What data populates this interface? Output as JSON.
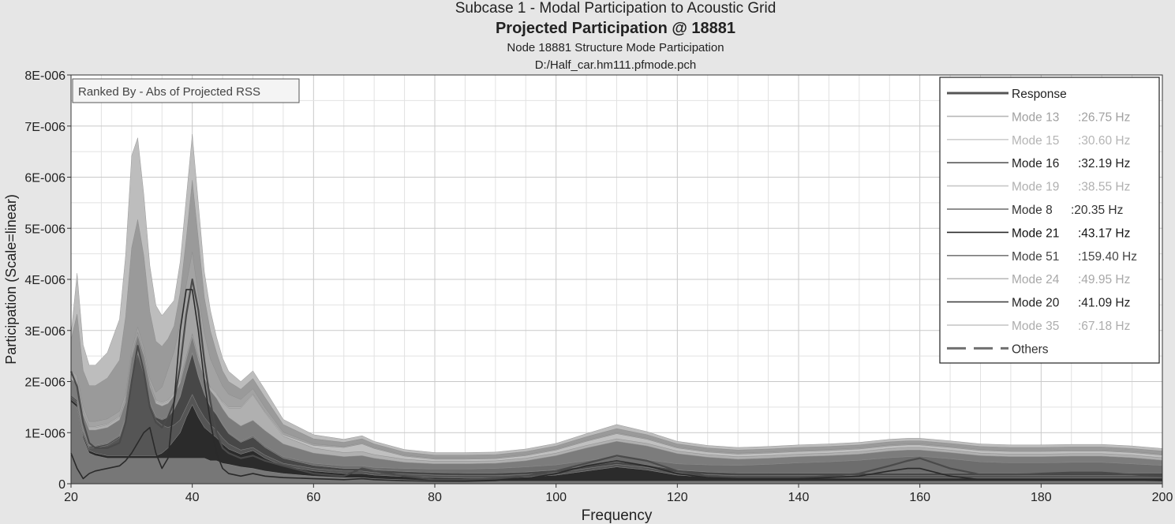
{
  "chart_data": {
    "type": "area",
    "title": "Subcase 1 - Modal Participation to Acoustic Grid",
    "subtitle": "Projected Participation @ 18881",
    "subtitle2": "Node 18881 Structure Mode Participation",
    "source": "D:/Half_car.hm111.pfmode.pch",
    "xlabel": "Frequency",
    "ylabel": "Participation (Scale=linear)",
    "ranked_by": "Ranked By - Abs of Projected RSS",
    "xlim": [
      20,
      200
    ],
    "ylim": [
      0,
      8e-06
    ],
    "x_ticks": [
      "20",
      "40",
      "60",
      "80",
      "100",
      "120",
      "140",
      "160",
      "180",
      "200"
    ],
    "x_tick_values": [
      20,
      40,
      60,
      80,
      100,
      120,
      140,
      160,
      180,
      200
    ],
    "y_ticks": [
      "0",
      "1E-006",
      "2E-006",
      "3E-006",
      "4E-006",
      "5E-006",
      "6E-006",
      "7E-006",
      "8E-006"
    ],
    "y_tick_values": [
      0,
      1e-06,
      2e-06,
      3e-06,
      4e-06,
      5e-06,
      6e-06,
      7e-06,
      8e-06
    ],
    "grid": true,
    "legend_position": "top-right",
    "legend": [
      {
        "name": "Response",
        "freq": "",
        "color": "#555555",
        "text_color": "#222222",
        "dash": false
      },
      {
        "name": "Mode 13",
        "freq": ":26.75 Hz",
        "color": "#b8b8b8",
        "text_color": "#a0a0a0",
        "dash": false
      },
      {
        "name": "Mode 15",
        "freq": ":30.60 Hz",
        "color": "#cfcfcf",
        "text_color": "#b5b5b5",
        "dash": false
      },
      {
        "name": "Mode 16",
        "freq": ":32.19 Hz",
        "color": "#5a5a5a",
        "text_color": "#222222",
        "dash": false
      },
      {
        "name": "Mode 19",
        "freq": ":38.55 Hz",
        "color": "#c8c8c8",
        "text_color": "#b0b0b0",
        "dash": false
      },
      {
        "name": "Mode 8",
        "freq": ":20.35 Hz",
        "color": "#6a6a6a",
        "text_color": "#333333",
        "dash": false
      },
      {
        "name": "Mode 21",
        "freq": ":43.17 Hz",
        "color": "#2a2a2a",
        "text_color": "#111111",
        "dash": false
      },
      {
        "name": "Mode 51",
        "freq": ":159.40 Hz",
        "color": "#7a7a7a",
        "text_color": "#444444",
        "dash": false
      },
      {
        "name": "Mode 24",
        "freq": ":49.95 Hz",
        "color": "#bcbcbc",
        "text_color": "#a8a8a8",
        "dash": false
      },
      {
        "name": "Mode 20",
        "freq": ":41.09 Hz",
        "color": "#444444",
        "text_color": "#222222",
        "dash": false
      },
      {
        "name": "Mode 35",
        "freq": ":67.18 Hz",
        "color": "#c4c4c4",
        "text_color": "#adadad",
        "dash": false
      },
      {
        "name": "Others",
        "freq": "",
        "color": "#707070",
        "text_color": "#333333",
        "dash": true
      }
    ],
    "x": [
      20,
      21,
      22,
      23,
      24,
      26,
      28,
      29,
      30,
      31,
      32,
      33,
      34,
      35,
      36,
      37,
      38,
      39,
      40,
      41,
      42,
      43,
      44,
      45,
      46,
      48,
      50,
      52,
      55,
      60,
      65,
      68,
      70,
      75,
      80,
      85,
      90,
      95,
      100,
      105,
      110,
      115,
      120,
      125,
      130,
      135,
      140,
      145,
      150,
      155,
      158,
      160,
      165,
      170,
      175,
      180,
      185,
      190,
      195,
      200
    ],
    "series": [
      {
        "name": "Mode 8",
        "color": "#777777",
        "values": [
          1.6,
          1.5,
          0.9,
          0.6,
          0.55,
          0.5,
          0.5,
          0.5,
          0.5,
          0.5,
          0.5,
          0.5,
          0.5,
          0.5,
          0.5,
          0.5,
          0.5,
          0.5,
          0.5,
          0.5,
          0.5,
          0.45,
          0.45,
          0.4,
          0.38,
          0.33,
          0.3,
          0.25,
          0.2,
          0.15,
          0.12,
          0.12,
          0.1,
          0.08,
          0.06,
          0.05,
          0.05,
          0.05,
          0.05,
          0.05,
          0.05,
          0.05,
          0.05,
          0.05,
          0.05,
          0.05,
          0.05,
          0.05,
          0.05,
          0.05,
          0.05,
          0.05,
          0.05,
          0.05,
          0.05,
          0.05,
          0.05,
          0.05,
          0.05,
          0.05
        ]
      },
      {
        "name": "Mode 21",
        "color": "#2b2b2b",
        "values": [
          0.05,
          0.05,
          0.05,
          0.05,
          0.05,
          0.05,
          0.05,
          0.05,
          0.05,
          0.05,
          0.05,
          0.05,
          0.05,
          0.1,
          0.2,
          0.35,
          0.5,
          0.8,
          1.05,
          0.8,
          0.6,
          0.55,
          0.45,
          0.38,
          0.3,
          0.25,
          0.35,
          0.25,
          0.15,
          0.1,
          0.08,
          0.08,
          0.07,
          0.06,
          0.06,
          0.06,
          0.06,
          0.08,
          0.12,
          0.2,
          0.28,
          0.22,
          0.12,
          0.08,
          0.06,
          0.06,
          0.06,
          0.06,
          0.06,
          0.06,
          0.06,
          0.06,
          0.06,
          0.06,
          0.06,
          0.06,
          0.06,
          0.06,
          0.06,
          0.06
        ]
      },
      {
        "name": "Mode 16",
        "color": "#555555",
        "values": [
          0.05,
          0.05,
          0.05,
          0.05,
          0.1,
          0.2,
          0.35,
          0.7,
          1.55,
          2.0,
          1.6,
          1.0,
          0.7,
          0.55,
          0.4,
          0.3,
          0.25,
          0.2,
          0.2,
          0.2,
          0.2,
          0.15,
          0.15,
          0.12,
          0.1,
          0.08,
          0.06,
          0.06,
          0.05,
          0.05,
          0.05,
          0.05,
          0.05,
          0.05,
          0.05,
          0.05,
          0.05,
          0.05,
          0.05,
          0.05,
          0.05,
          0.05,
          0.05,
          0.05,
          0.05,
          0.05,
          0.05,
          0.05,
          0.05,
          0.05,
          0.05,
          0.05,
          0.05,
          0.05,
          0.05,
          0.05,
          0.05,
          0.05,
          0.05,
          0.05
        ]
      },
      {
        "name": "Mode 20",
        "color": "#474747",
        "values": [
          0.03,
          0.03,
          0.03,
          0.03,
          0.03,
          0.03,
          0.03,
          0.03,
          0.03,
          0.03,
          0.03,
          0.03,
          0.05,
          0.1,
          0.2,
          0.3,
          0.45,
          0.65,
          0.8,
          0.6,
          0.45,
          0.35,
          0.3,
          0.25,
          0.2,
          0.15,
          0.2,
          0.15,
          0.1,
          0.06,
          0.05,
          0.05,
          0.05,
          0.05,
          0.05,
          0.05,
          0.05,
          0.05,
          0.05,
          0.05,
          0.05,
          0.05,
          0.05,
          0.05,
          0.05,
          0.05,
          0.05,
          0.05,
          0.05,
          0.05,
          0.05,
          0.05,
          0.05,
          0.05,
          0.05,
          0.05,
          0.05,
          0.05,
          0.05,
          0.05
        ]
      },
      {
        "name": "Mode 51",
        "color": "#6d6d6d",
        "values": [
          0.02,
          0.02,
          0.02,
          0.02,
          0.02,
          0.02,
          0.02,
          0.02,
          0.02,
          0.02,
          0.02,
          0.02,
          0.02,
          0.02,
          0.02,
          0.02,
          0.02,
          0.02,
          0.02,
          0.02,
          0.02,
          0.02,
          0.02,
          0.02,
          0.02,
          0.02,
          0.03,
          0.03,
          0.03,
          0.04,
          0.05,
          0.05,
          0.05,
          0.06,
          0.07,
          0.08,
          0.09,
          0.1,
          0.1,
          0.1,
          0.1,
          0.1,
          0.12,
          0.14,
          0.15,
          0.17,
          0.2,
          0.22,
          0.25,
          0.3,
          0.32,
          0.33,
          0.28,
          0.22,
          0.2,
          0.2,
          0.21,
          0.21,
          0.18,
          0.15
        ]
      },
      {
        "name": "Others",
        "color": "#7c7c7c",
        "values": [
          0.3,
          0.3,
          0.3,
          0.3,
          0.3,
          0.3,
          0.3,
          0.3,
          0.3,
          0.3,
          0.3,
          0.3,
          0.25,
          0.25,
          0.25,
          0.25,
          0.25,
          0.25,
          0.3,
          0.3,
          0.3,
          0.3,
          0.3,
          0.3,
          0.3,
          0.3,
          0.3,
          0.3,
          0.25,
          0.2,
          0.18,
          0.2,
          0.18,
          0.12,
          0.1,
          0.1,
          0.1,
          0.12,
          0.18,
          0.25,
          0.3,
          0.27,
          0.2,
          0.15,
          0.12,
          0.12,
          0.12,
          0.12,
          0.12,
          0.13,
          0.13,
          0.12,
          0.12,
          0.12,
          0.12,
          0.12,
          0.12,
          0.12,
          0.12,
          0.1
        ]
      },
      {
        "name": "Mode 24",
        "color": "#b0b0b0",
        "values": [
          0.05,
          0.05,
          0.05,
          0.05,
          0.05,
          0.05,
          0.05,
          0.05,
          0.05,
          0.05,
          0.05,
          0.05,
          0.05,
          0.05,
          0.05,
          0.05,
          0.05,
          0.05,
          0.05,
          0.05,
          0.05,
          0.05,
          0.08,
          0.12,
          0.18,
          0.35,
          0.5,
          0.35,
          0.15,
          0.1,
          0.08,
          0.08,
          0.07,
          0.06,
          0.05,
          0.05,
          0.05,
          0.05,
          0.05,
          0.05,
          0.05,
          0.05,
          0.05,
          0.05,
          0.05,
          0.05,
          0.05,
          0.05,
          0.05,
          0.05,
          0.05,
          0.05,
          0.05,
          0.05,
          0.05,
          0.05,
          0.05,
          0.05,
          0.05,
          0.05
        ]
      },
      {
        "name": "Mode 35",
        "color": "#c0c0c0",
        "values": [
          0.02,
          0.02,
          0.02,
          0.02,
          0.02,
          0.02,
          0.02,
          0.02,
          0.02,
          0.02,
          0.02,
          0.02,
          0.02,
          0.02,
          0.02,
          0.02,
          0.02,
          0.02,
          0.02,
          0.02,
          0.02,
          0.02,
          0.02,
          0.02,
          0.02,
          0.02,
          0.02,
          0.02,
          0.03,
          0.05,
          0.1,
          0.15,
          0.12,
          0.06,
          0.04,
          0.04,
          0.04,
          0.05,
          0.06,
          0.08,
          0.1,
          0.08,
          0.06,
          0.05,
          0.05,
          0.05,
          0.05,
          0.05,
          0.05,
          0.05,
          0.05,
          0.05,
          0.05,
          0.05,
          0.05,
          0.05,
          0.05,
          0.05,
          0.05,
          0.05
        ]
      },
      {
        "name": "Mode 19",
        "color": "#a3a3a3",
        "values": [
          0.1,
          0.1,
          0.1,
          0.1,
          0.1,
          0.1,
          0.1,
          0.1,
          0.1,
          0.1,
          0.1,
          0.1,
          0.15,
          0.3,
          0.6,
          0.8,
          1.1,
          1.4,
          1.6,
          1.2,
          0.8,
          0.55,
          0.4,
          0.3,
          0.25,
          0.15,
          0.1,
          0.08,
          0.05,
          0.03,
          0.02,
          0.02,
          0.02,
          0.02,
          0.02,
          0.02,
          0.02,
          0.02,
          0.02,
          0.02,
          0.02,
          0.02,
          0.02,
          0.02,
          0.02,
          0.02,
          0.02,
          0.02,
          0.02,
          0.02,
          0.02,
          0.02,
          0.02,
          0.02,
          0.02,
          0.02,
          0.02,
          0.02,
          0.02,
          0.02
        ]
      },
      {
        "name": "Mode 13",
        "color": "#9a9a9a",
        "values": [
          0.6,
          1.2,
          0.7,
          0.7,
          0.7,
          0.8,
          1.0,
          1.5,
          2.0,
          2.1,
          1.8,
          1.3,
          1.0,
          0.8,
          0.6,
          0.5,
          0.6,
          0.9,
          1.4,
          1.1,
          0.7,
          0.55,
          0.4,
          0.3,
          0.25,
          0.2,
          0.2,
          0.2,
          0.15,
          0.1,
          0.08,
          0.08,
          0.07,
          0.06,
          0.06,
          0.06,
          0.06,
          0.06,
          0.06,
          0.07,
          0.08,
          0.07,
          0.06,
          0.06,
          0.06,
          0.06,
          0.06,
          0.06,
          0.06,
          0.06,
          0.06,
          0.06,
          0.06,
          0.06,
          0.06,
          0.06,
          0.06,
          0.06,
          0.06,
          0.06
        ]
      },
      {
        "name": "Mode 15",
        "color": "#bdbdbd",
        "values": [
          0.1,
          0.8,
          0.5,
          0.4,
          0.4,
          0.5,
          0.8,
          1.2,
          1.8,
          1.6,
          1.2,
          0.9,
          0.7,
          0.6,
          0.6,
          0.5,
          0.6,
          0.8,
          0.9,
          0.7,
          0.5,
          0.4,
          0.3,
          0.25,
          0.2,
          0.15,
          0.15,
          0.15,
          0.1,
          0.08,
          0.06,
          0.06,
          0.05,
          0.05,
          0.05,
          0.05,
          0.05,
          0.05,
          0.05,
          0.06,
          0.08,
          0.06,
          0.05,
          0.05,
          0.05,
          0.05,
          0.05,
          0.05,
          0.05,
          0.05,
          0.05,
          0.05,
          0.05,
          0.05,
          0.05,
          0.05,
          0.05,
          0.05,
          0.05,
          0.05
        ]
      }
    ],
    "lines": [
      {
        "name": "Response",
        "color": "#4a4a4a",
        "width": 2.2,
        "values": [
          2.2,
          1.9,
          1.2,
          0.8,
          0.7,
          0.7,
          0.8,
          1.2,
          2.0,
          2.7,
          2.2,
          1.5,
          1.2,
          1.1,
          1.3,
          1.6,
          2.3,
          3.3,
          4.0,
          3.4,
          2.4,
          1.6,
          1.0,
          0.7,
          0.6,
          0.5,
          0.55,
          0.45,
          0.35,
          0.2,
          0.15,
          0.3,
          0.25,
          0.15,
          0.08,
          0.08,
          0.1,
          0.15,
          0.25,
          0.4,
          0.55,
          0.45,
          0.25,
          0.15,
          0.12,
          0.12,
          0.12,
          0.15,
          0.2,
          0.35,
          0.45,
          0.5,
          0.3,
          0.18,
          0.18,
          0.2,
          0.22,
          0.22,
          0.18,
          0.15
        ]
      },
      {
        "name": "Mode 21",
        "color": "#2a2a2a",
        "width": 1.6,
        "values": [
          0.6,
          0.3,
          0.1,
          0.2,
          0.25,
          0.3,
          0.35,
          0.45,
          0.6,
          0.8,
          1.0,
          1.1,
          0.6,
          0.3,
          0.5,
          1.6,
          3.0,
          3.8,
          3.8,
          3.0,
          2.0,
          1.2,
          0.6,
          0.3,
          0.2,
          0.15,
          0.2,
          0.15,
          0.12,
          0.1,
          0.08,
          0.1,
          0.08,
          0.06,
          0.05,
          0.05,
          0.06,
          0.1,
          0.2,
          0.35,
          0.45,
          0.35,
          0.2,
          0.12,
          0.1,
          0.1,
          0.1,
          0.12,
          0.15,
          0.25,
          0.3,
          0.3,
          0.15,
          0.08,
          0.08,
          0.08,
          0.08,
          0.08,
          0.07,
          0.06
        ]
      }
    ]
  }
}
